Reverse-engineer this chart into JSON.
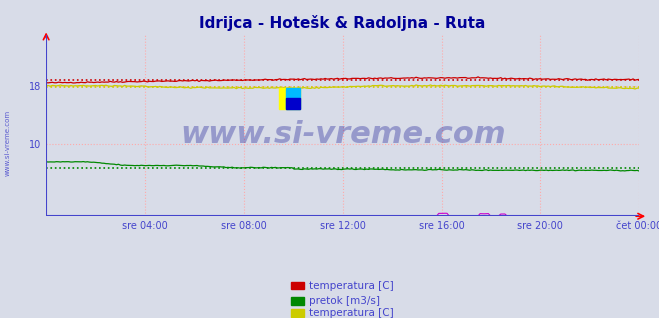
{
  "title": "Idrijca - Hotešk & Radoljna - Ruta",
  "title_color": "#000099",
  "title_fontsize": 11,
  "bg_color": "#d8dce8",
  "plot_bg_color": "#d8dce8",
  "ylim": [
    0,
    25
  ],
  "ytick_vals": [
    10,
    18
  ],
  "xtick_labels": [
    "sre 04:00",
    "sre 08:00",
    "sre 12:00",
    "sre 16:00",
    "sre 20:00",
    "čet 00:00"
  ],
  "xtick_positions": [
    0.167,
    0.333,
    0.5,
    0.667,
    0.833,
    1.0
  ],
  "watermark": "www.si-vreme.com",
  "watermark_color": "#00008B",
  "watermark_alpha": 0.3,
  "watermark_fontsize": 22,
  "side_text": "www.si-vreme.com",
  "side_text_color": "#4444cc",
  "grid_color": "#ffaaaa",
  "line_colors": {
    "temp1": "#cc0000",
    "flow1": "#008800",
    "temp2": "#cccc00",
    "flow2": "#cc00cc"
  },
  "axis_color": "#4444cc",
  "axis_label_color": "#4444cc",
  "legend_fontsize": 7.5,
  "n_points": 288,
  "temp1_avg": 18.8,
  "flow1_avg": 6.5,
  "temp2_avg": 18.0,
  "flow2_avg": 0.05
}
